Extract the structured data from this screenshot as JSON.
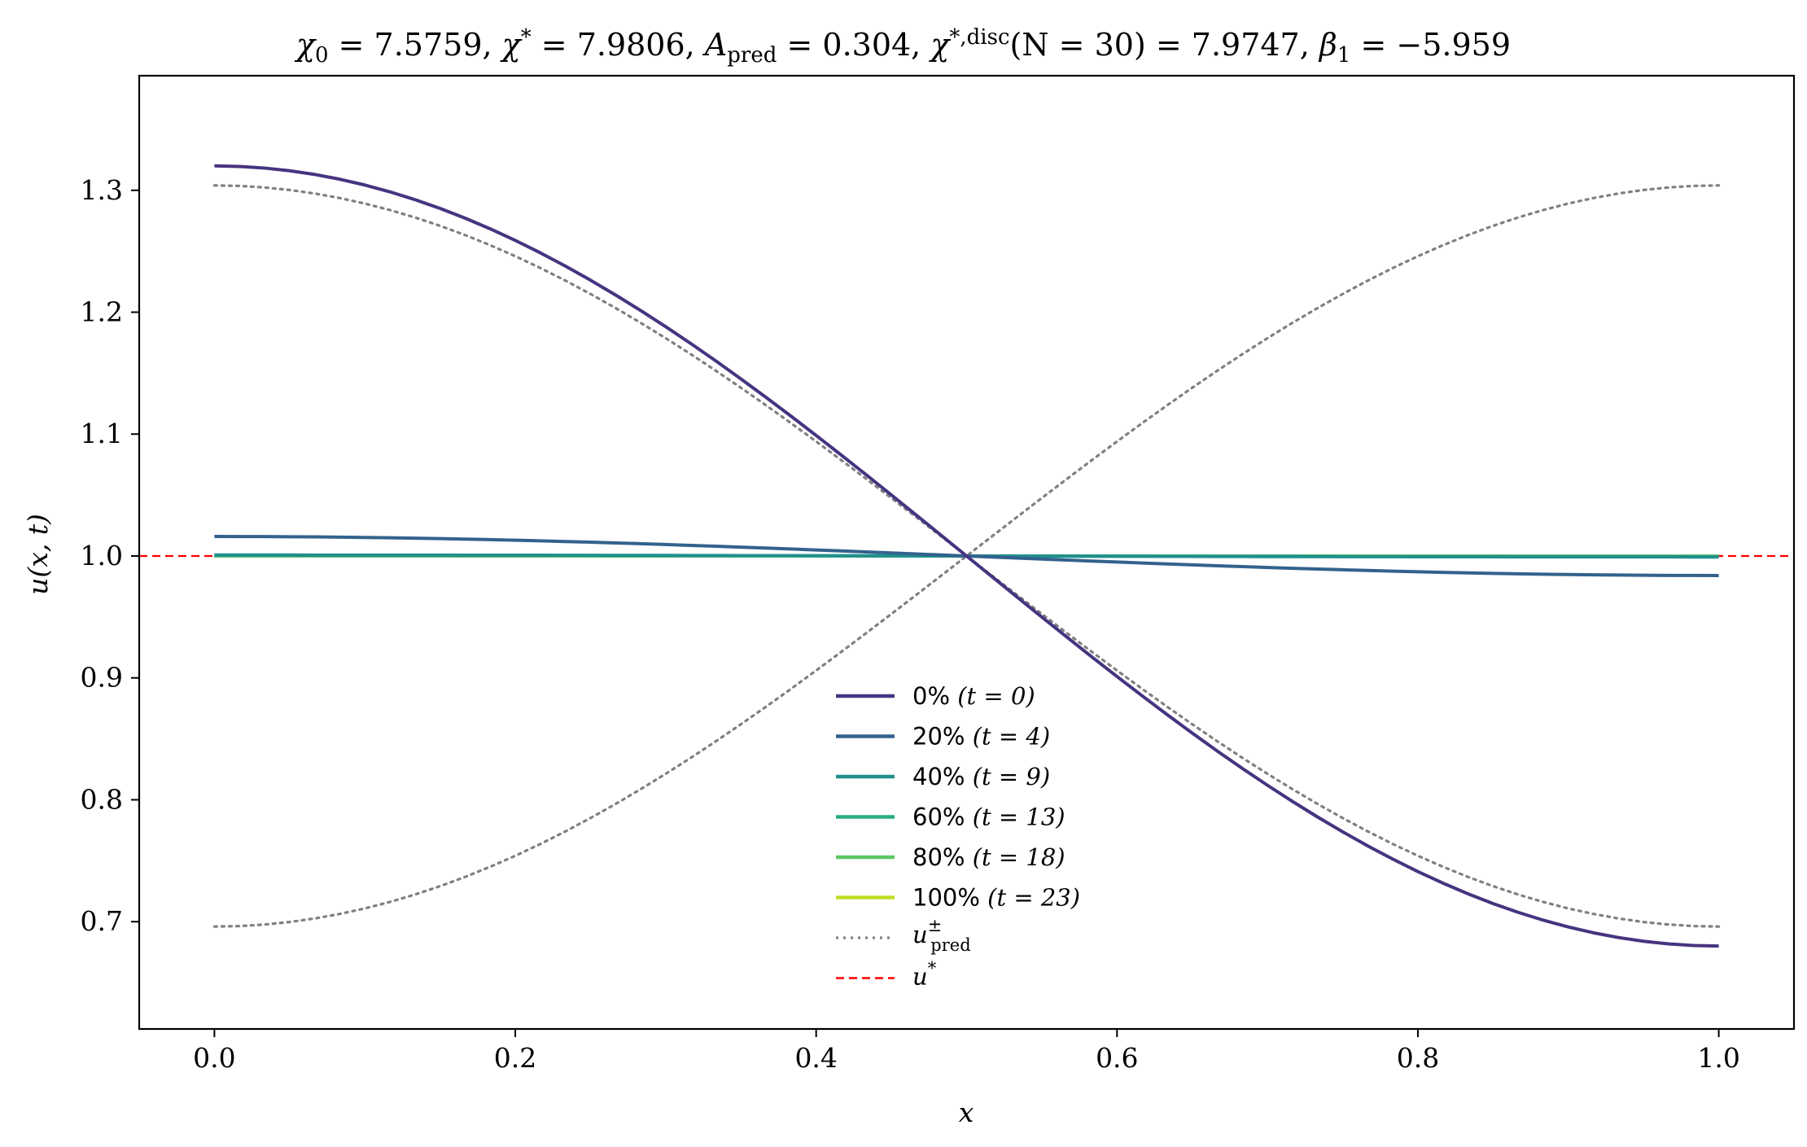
{
  "chart_data": {
    "type": "line",
    "title": "χ₀ = 7.5759,  χ* = 7.9806,  A_pred = 0.304,  χ*,disc(N = 30) = 7.9747,  β₁ = −5.959",
    "title_parts": {
      "chi0": "χ",
      "chi0_sub": "0",
      "chi0_val": " = 7.5759,  ",
      "chistar": "χ",
      "chistar_sup": "*",
      "chistar_val": " = 7.9806,  ",
      "apred": "A",
      "apred_sub": "pred",
      "apred_val": " = 0.304,  ",
      "chidisc": "χ",
      "chidisc_sup": "*,disc",
      "chidisc_val": "(N = 30) = 7.9747,  ",
      "beta": "β",
      "beta_sub": "1",
      "beta_val": " = −5.959"
    },
    "xlabel": "x",
    "ylabel": "u(x, t)",
    "xlim": [
      -0.05,
      1.05
    ],
    "ylim": [
      0.612,
      1.394
    ],
    "xticks": [
      0.0,
      0.2,
      0.4,
      0.6,
      0.8,
      1.0
    ],
    "xtick_labels": [
      "0.0",
      "0.2",
      "0.4",
      "0.6",
      "0.8",
      "1.0"
    ],
    "yticks": [
      0.7,
      0.8,
      0.9,
      1.0,
      1.1,
      1.2,
      1.3
    ],
    "ytick_labels": [
      "0.7",
      "0.8",
      "0.9",
      "1.0",
      "1.1",
      "1.2",
      "1.3"
    ],
    "grid": false,
    "legend_position": "lower-center",
    "series": [
      {
        "name": "0% (t = 0)",
        "legend_pct": "0%",
        "legend_t": "(t = 0)",
        "color": "#463480",
        "style": "solid",
        "shape": "cos",
        "offset": 1.0,
        "amplitude": 0.32
      },
      {
        "name": "20% (t = 4)",
        "legend_pct": "20%",
        "legend_t": "(t = 4)",
        "color": "#33628d",
        "style": "solid",
        "shape": "cos",
        "offset": 1.0,
        "amplitude": 0.016
      },
      {
        "name": "40% (t = 9)",
        "legend_pct": "40%",
        "legend_t": "(t = 9)",
        "color": "#21908d",
        "style": "solid",
        "shape": "cos",
        "offset": 1.0,
        "amplitude": 0.0008
      },
      {
        "name": "60% (t = 13)",
        "legend_pct": "60%",
        "legend_t": "(t = 13)",
        "color": "#27ad81",
        "style": "solid",
        "shape": "cos",
        "offset": 1.0,
        "amplitude": 0.0004
      },
      {
        "name": "80% (t = 18)",
        "legend_pct": "80%",
        "legend_t": "(t = 18)",
        "color": "#5dc863",
        "style": "solid",
        "shape": "cos",
        "offset": 1.0,
        "amplitude": 0.0002
      },
      {
        "name": "100% (t = 23)",
        "legend_pct": "100%",
        "legend_t": "(t = 23)",
        "color": "#bddf26",
        "style": "solid",
        "shape": "cos",
        "offset": 1.0,
        "amplitude": 0.0001
      }
    ],
    "pred_series": {
      "name": "u±pred",
      "legend_base": "u",
      "legend_sup": "±",
      "legend_sub": "pred",
      "color": "#808080",
      "style": "dotted",
      "offset": 1.0,
      "amplitude": 0.304
    },
    "ref_line": {
      "name": "u*",
      "legend_base": "u",
      "legend_sup": "*",
      "y": 1.0,
      "color": "#ff0000",
      "style": "dashed"
    }
  }
}
